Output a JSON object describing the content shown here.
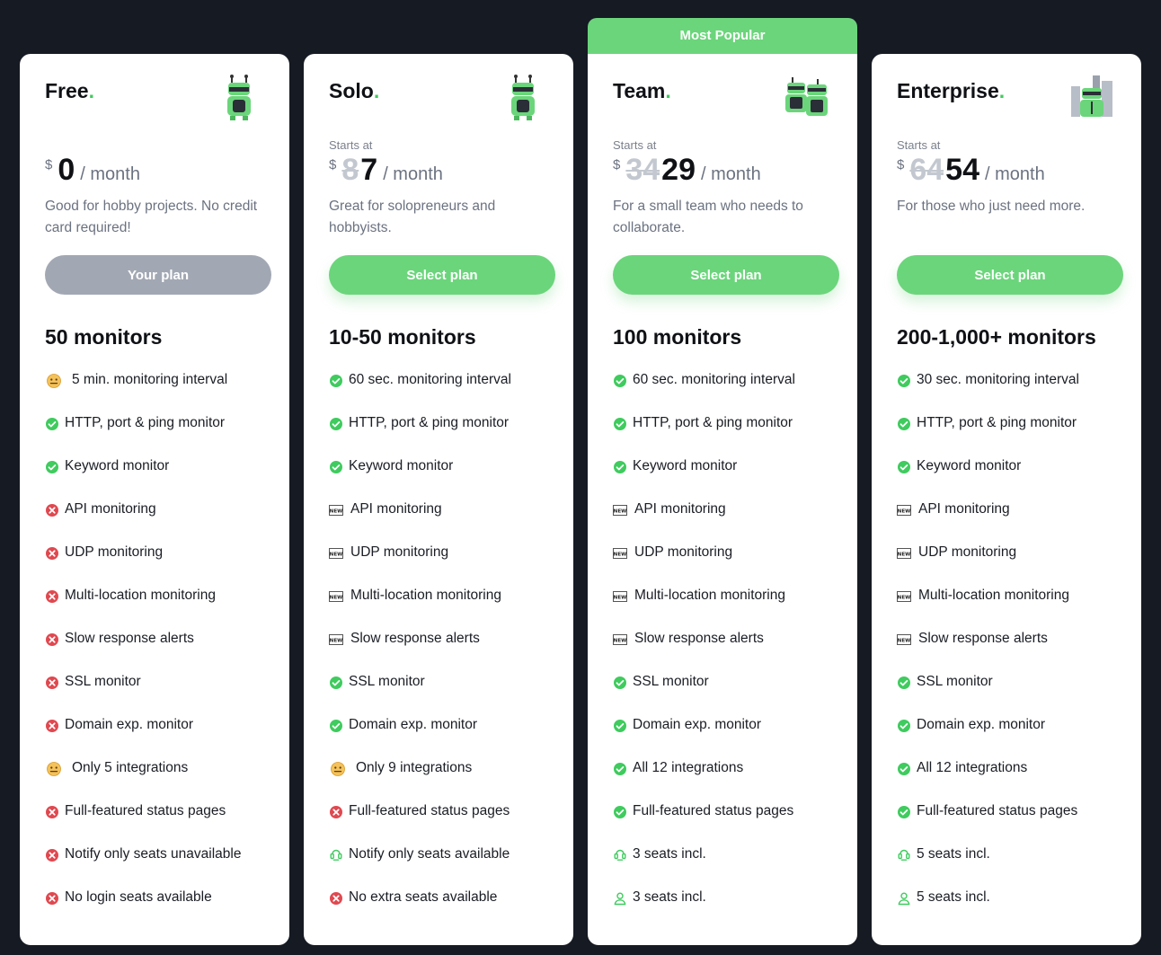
{
  "popular_label": "Most Popular",
  "plans": [
    {
      "name": "Free",
      "starts_at": "",
      "currency": "$",
      "old_price": "",
      "price": "0",
      "per": "/ month",
      "description": "Good for hobby projects. No credit card required!",
      "button": "Your plan",
      "monitors": "50 monitors",
      "features": [
        {
          "icon": "meh-face-icon",
          "text": "5 min. monitoring interval"
        },
        {
          "icon": "check-icon",
          "text": "HTTP, port & ping monitor"
        },
        {
          "icon": "check-icon",
          "text": "Keyword monitor"
        },
        {
          "icon": "cross-icon",
          "text": "API monitoring"
        },
        {
          "icon": "cross-icon",
          "text": "UDP monitoring"
        },
        {
          "icon": "cross-icon",
          "text": "Multi-location monitoring"
        },
        {
          "icon": "cross-icon",
          "text": "Slow response alerts"
        },
        {
          "icon": "cross-icon",
          "text": "SSL monitor"
        },
        {
          "icon": "cross-icon",
          "text": "Domain exp. monitor"
        },
        {
          "icon": "meh-face-icon",
          "text": "Only 5 integrations"
        },
        {
          "icon": "cross-icon",
          "text": "Full-featured status pages"
        },
        {
          "icon": "cross-icon",
          "text": "Notify only seats unavailable"
        },
        {
          "icon": "cross-icon",
          "text": "No login seats available"
        }
      ]
    },
    {
      "name": "Solo",
      "starts_at": "Starts at",
      "currency": "$",
      "old_price": "8",
      "price": "7",
      "per": "/ month",
      "description": "Great for solopreneurs and hobbyists.",
      "button": "Select plan",
      "monitors": "10-50 monitors",
      "features": [
        {
          "icon": "check-icon",
          "text": "60 sec. monitoring interval"
        },
        {
          "icon": "check-icon",
          "text": "HTTP, port & ping monitor"
        },
        {
          "icon": "check-icon",
          "text": "Keyword monitor"
        },
        {
          "icon": "new-badge-icon",
          "text": "API monitoring"
        },
        {
          "icon": "new-badge-icon",
          "text": "UDP monitoring"
        },
        {
          "icon": "new-badge-icon",
          "text": "Multi-location monitoring"
        },
        {
          "icon": "new-badge-icon",
          "text": "Slow response alerts"
        },
        {
          "icon": "check-icon",
          "text": "SSL monitor"
        },
        {
          "icon": "check-icon",
          "text": "Domain exp. monitor"
        },
        {
          "icon": "meh-face-icon",
          "text": "Only 9 integrations"
        },
        {
          "icon": "cross-icon",
          "text": "Full-featured status pages"
        },
        {
          "icon": "seat-icon",
          "text": "Notify only seats available"
        },
        {
          "icon": "cross-icon",
          "text": "No extra seats available"
        }
      ]
    },
    {
      "name": "Team",
      "starts_at": "Starts at",
      "currency": "$",
      "old_price": "34",
      "price": "29",
      "per": "/ month",
      "description": "For a small team who needs to collaborate.",
      "button": "Select plan",
      "monitors": "100 monitors",
      "features": [
        {
          "icon": "check-icon",
          "text": "60 sec. monitoring interval"
        },
        {
          "icon": "check-icon",
          "text": "HTTP, port & ping monitor"
        },
        {
          "icon": "check-icon",
          "text": "Keyword monitor"
        },
        {
          "icon": "new-badge-icon",
          "text": "API monitoring"
        },
        {
          "icon": "new-badge-icon",
          "text": "UDP monitoring"
        },
        {
          "icon": "new-badge-icon",
          "text": "Multi-location monitoring"
        },
        {
          "icon": "new-badge-icon",
          "text": "Slow response alerts"
        },
        {
          "icon": "check-icon",
          "text": "SSL monitor"
        },
        {
          "icon": "check-icon",
          "text": "Domain exp. monitor"
        },
        {
          "icon": "check-icon",
          "text": "All 12 integrations"
        },
        {
          "icon": "check-icon",
          "text": "Full-featured status pages"
        },
        {
          "icon": "seat-icon",
          "text": "3 seats incl."
        },
        {
          "icon": "user-icon",
          "text": "3 seats incl."
        }
      ]
    },
    {
      "name": "Enterprise",
      "starts_at": "Starts at",
      "currency": "$",
      "old_price": "64",
      "price": "54",
      "per": "/ month",
      "description": "For those who just need more.",
      "button": "Select plan",
      "monitors": "200-1,000+ monitors",
      "features": [
        {
          "icon": "check-icon",
          "text": "30 sec. monitoring interval"
        },
        {
          "icon": "check-icon",
          "text": "HTTP, port & ping monitor"
        },
        {
          "icon": "check-icon",
          "text": "Keyword monitor"
        },
        {
          "icon": "new-badge-icon",
          "text": "API monitoring"
        },
        {
          "icon": "new-badge-icon",
          "text": "UDP monitoring"
        },
        {
          "icon": "new-badge-icon",
          "text": "Multi-location monitoring"
        },
        {
          "icon": "new-badge-icon",
          "text": "Slow response alerts"
        },
        {
          "icon": "check-icon",
          "text": "SSL monitor"
        },
        {
          "icon": "check-icon",
          "text": "Domain exp. monitor"
        },
        {
          "icon": "check-icon",
          "text": "All 12 integrations"
        },
        {
          "icon": "check-icon",
          "text": "Full-featured status pages"
        },
        {
          "icon": "seat-icon",
          "text": "5 seats incl."
        },
        {
          "icon": "user-icon",
          "text": "5 seats incl."
        }
      ]
    }
  ],
  "colors": {
    "background": "#161a23",
    "accent": "#6bd57b",
    "check": "#3fcb5e",
    "cross": "#e0484f",
    "muted_button": "#a2a8b3"
  }
}
